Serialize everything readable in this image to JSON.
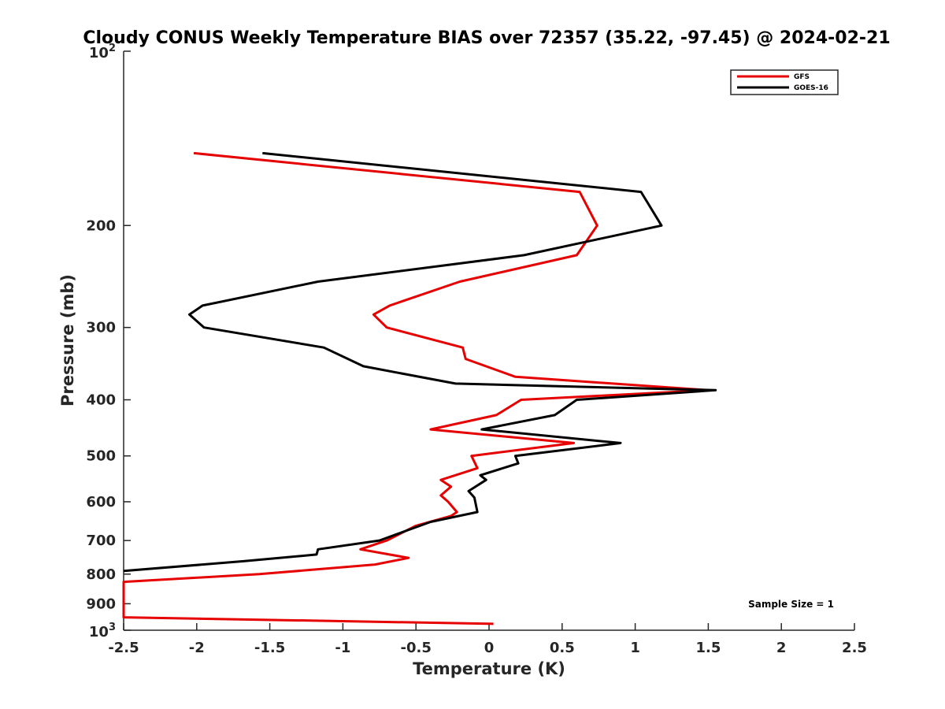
{
  "chart_data": {
    "type": "line",
    "title": "Cloudy CONUS Weekly Temperature BIAS over 72357 (35.22, -97.45) @ 2024-02-21",
    "xlabel": "Temperature (K)",
    "ylabel": "Pressure (mb)",
    "xlim": [
      -2.5,
      2.5
    ],
    "ylim": [
      100,
      1000
    ],
    "y_scale": "log",
    "y_reversed": true,
    "grid": false,
    "legend_position": "top-right",
    "x_ticks": [
      -2.5,
      -2,
      -1.5,
      -1,
      -0.5,
      0,
      0.5,
      1,
      1.5,
      2,
      2.5
    ],
    "x_tick_labels": [
      "-2.5",
      "-2",
      "-1.5",
      "-1",
      "-0.5",
      "0",
      "0.5",
      "1",
      "1.5",
      "2",
      "2.5"
    ],
    "y_ticks": [
      200,
      300,
      400,
      500,
      600,
      700,
      800,
      900
    ],
    "y_tick_labels": [
      "200",
      "300",
      "400",
      "500",
      "600",
      "700",
      "800",
      "900"
    ],
    "y_min_label": {
      "base": "10",
      "exp": "2"
    },
    "y_max_label": {
      "base": "10",
      "exp": "3"
    },
    "annotation": "Sample Size = 1",
    "series": [
      {
        "name": "GFS",
        "color": "#e60000",
        "points": [
          [
            -2.02,
            150
          ],
          [
            0.62,
            175
          ],
          [
            0.74,
            200
          ],
          [
            0.6,
            225
          ],
          [
            -0.2,
            250
          ],
          [
            -0.68,
            275
          ],
          [
            -0.79,
            285
          ],
          [
            -0.7,
            300
          ],
          [
            -0.18,
            325
          ],
          [
            -0.16,
            340
          ],
          [
            0.18,
            365
          ],
          [
            1.5,
            385
          ],
          [
            0.22,
            400
          ],
          [
            0.05,
            425
          ],
          [
            -0.4,
            450
          ],
          [
            0.58,
            475
          ],
          [
            -0.12,
            500
          ],
          [
            -0.08,
            525
          ],
          [
            -0.33,
            550
          ],
          [
            -0.26,
            565
          ],
          [
            -0.33,
            585
          ],
          [
            -0.28,
            600
          ],
          [
            -0.22,
            625
          ],
          [
            -0.26,
            635
          ],
          [
            -0.5,
            660
          ],
          [
            -0.7,
            700
          ],
          [
            -0.88,
            725
          ],
          [
            -0.55,
            750
          ],
          [
            -0.78,
            770
          ],
          [
            -1.57,
            800
          ],
          [
            -2.5,
            825
          ],
          [
            -2.5,
            950
          ],
          [
            0.03,
            975
          ]
        ]
      },
      {
        "name": "GOES-16",
        "color": "#000000",
        "points": [
          [
            -1.55,
            150
          ],
          [
            1.04,
            175
          ],
          [
            1.18,
            200
          ],
          [
            0.24,
            225
          ],
          [
            -1.17,
            250
          ],
          [
            -1.96,
            275
          ],
          [
            -2.05,
            285
          ],
          [
            -1.95,
            300
          ],
          [
            -1.13,
            325
          ],
          [
            -0.86,
            350
          ],
          [
            -0.23,
            375
          ],
          [
            1.55,
            385
          ],
          [
            0.6,
            400
          ],
          [
            0.45,
            425
          ],
          [
            -0.05,
            450
          ],
          [
            0.9,
            475
          ],
          [
            0.18,
            500
          ],
          [
            0.2,
            515
          ],
          [
            -0.06,
            540
          ],
          [
            -0.02,
            550
          ],
          [
            -0.14,
            575
          ],
          [
            -0.1,
            590
          ],
          [
            -0.08,
            625
          ],
          [
            -0.4,
            650
          ],
          [
            -0.75,
            700
          ],
          [
            -1.17,
            725
          ],
          [
            -1.18,
            740
          ],
          [
            -1.68,
            760
          ],
          [
            -2.5,
            790
          ]
        ]
      }
    ]
  }
}
